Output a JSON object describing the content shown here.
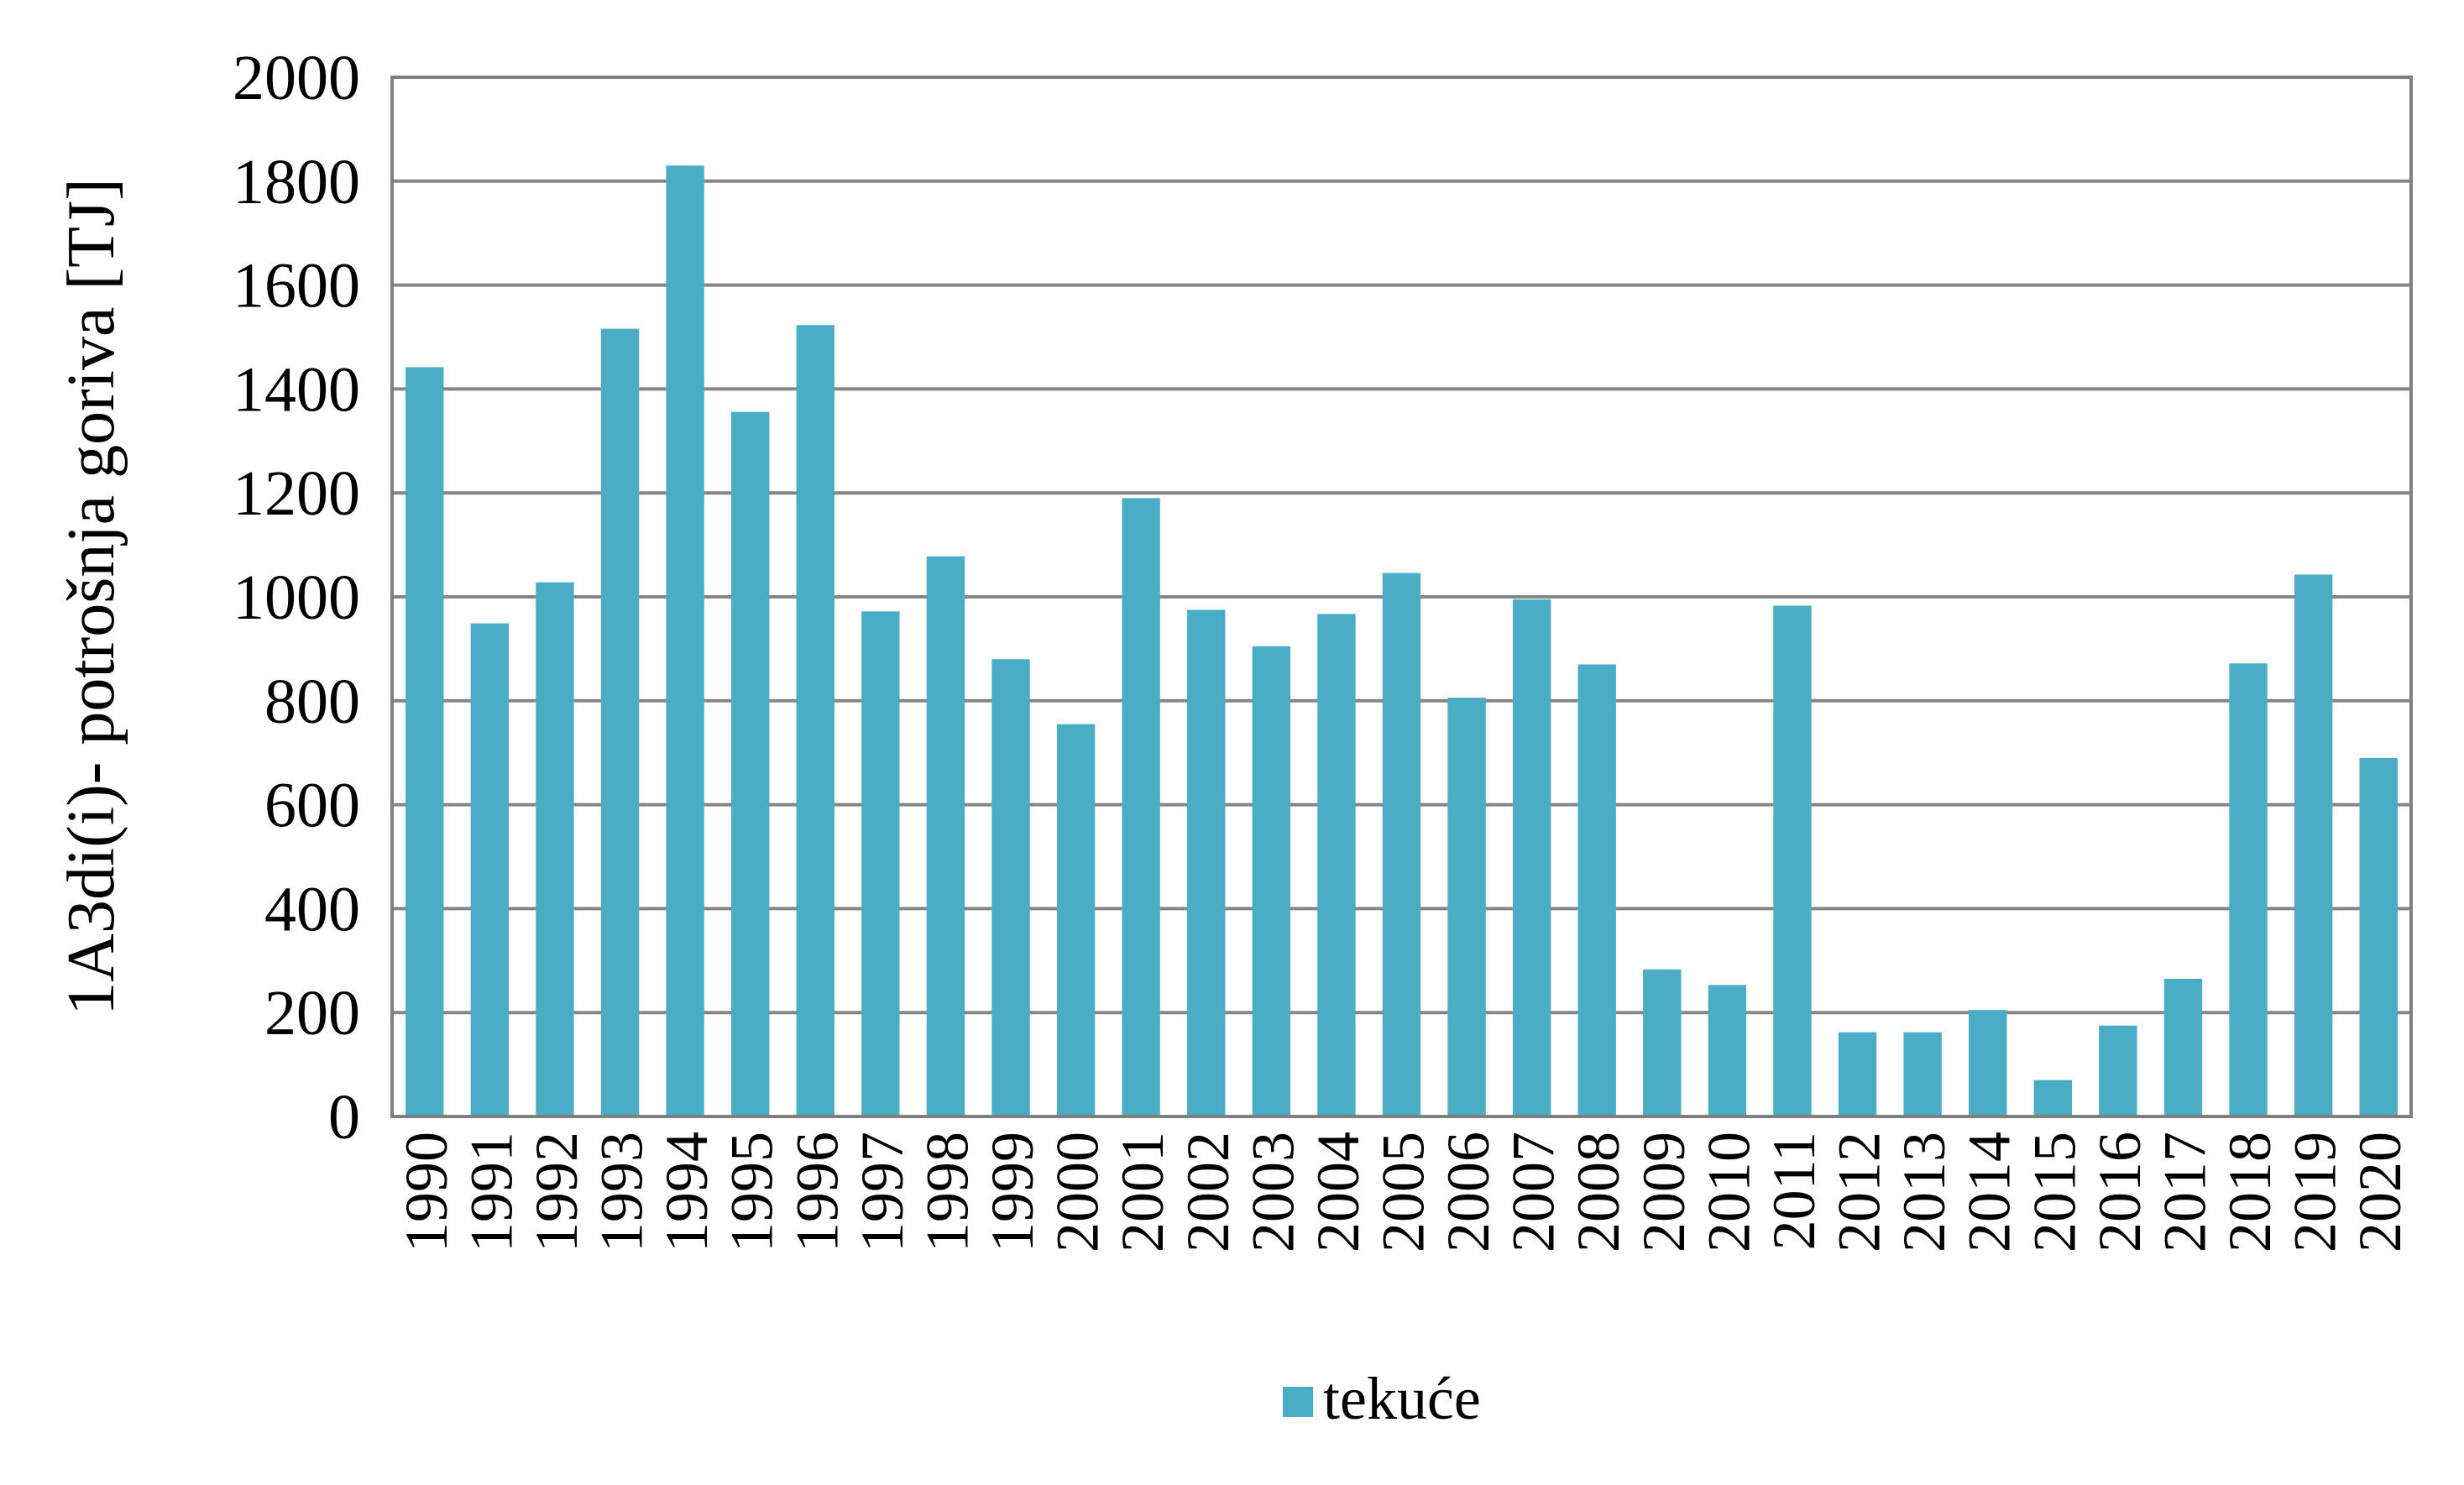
{
  "chart_data": {
    "type": "bar",
    "title": "",
    "xlabel": "",
    "ylabel": "1A3di(i)- potrošnja goriva [TJ]",
    "ylim": [
      0,
      2000
    ],
    "yticks": [
      0,
      200,
      400,
      600,
      800,
      1000,
      1200,
      1400,
      1600,
      1800,
      2000
    ],
    "grid": true,
    "legend_position": "bottom",
    "categories": [
      "1990",
      "1991",
      "1992",
      "1993",
      "1994",
      "1995",
      "1996",
      "1997",
      "1998",
      "1999",
      "2000",
      "2001",
      "2002",
      "2003",
      "2004",
      "2005",
      "2006",
      "2007",
      "2008",
      "2009",
      "2010",
      "2011",
      "2012",
      "2013",
      "2014",
      "2015",
      "2016",
      "2017",
      "2018",
      "2019",
      "2020"
    ],
    "series": [
      {
        "name": "tekuće",
        "color": "#4BACC6",
        "values": [
          1442,
          949,
          1028,
          1516,
          1830,
          1356,
          1523,
          972,
          1078,
          880,
          755,
          1190,
          975,
          905,
          967,
          1046,
          806,
          995,
          870,
          283,
          253,
          983,
          162,
          162,
          205,
          70,
          175,
          265,
          872,
          1043,
          690
        ]
      }
    ]
  }
}
